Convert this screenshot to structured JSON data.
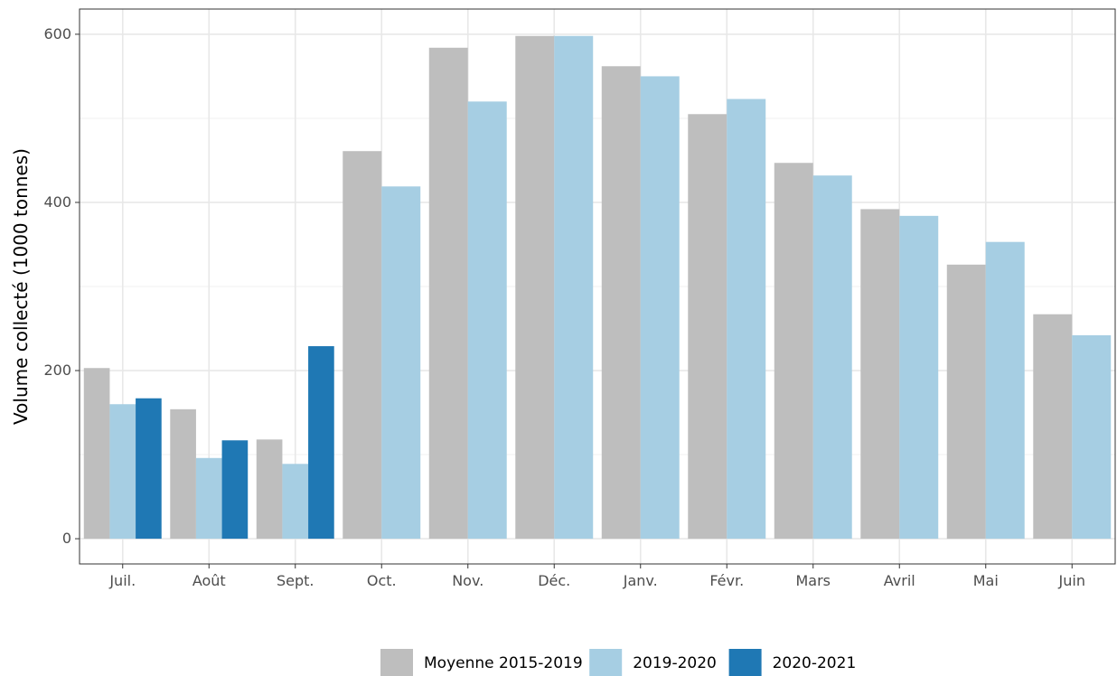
{
  "chart_data": {
    "type": "bar",
    "title": "",
    "xlabel": "",
    "ylabel": "Volume collecté (1000 tonnes)",
    "ylim": [
      -30,
      630
    ],
    "yticks": [
      0,
      200,
      400,
      600
    ],
    "grid": true,
    "legend_position": "bottom",
    "categories": [
      "Juil.",
      "Août",
      "Sept.",
      "Oct.",
      "Nov.",
      "Déc.",
      "Janv.",
      "Févr.",
      "Mars",
      "Avril",
      "Mai",
      "Juin"
    ],
    "series": [
      {
        "name": "Moyenne 2015-2019",
        "color": "#bebebe",
        "values": [
          203,
          154,
          118,
          461,
          584,
          598,
          562,
          505,
          447,
          392,
          326,
          267
        ]
      },
      {
        "name": "2019-2020",
        "color": "#a6cee3",
        "values": [
          160,
          96,
          89,
          419,
          520,
          598,
          550,
          523,
          432,
          384,
          353,
          242
        ]
      },
      {
        "name": "2020-2021",
        "color": "#1f78b4",
        "values": [
          167,
          117,
          229,
          null,
          null,
          null,
          null,
          null,
          null,
          null,
          null,
          null
        ]
      }
    ]
  }
}
